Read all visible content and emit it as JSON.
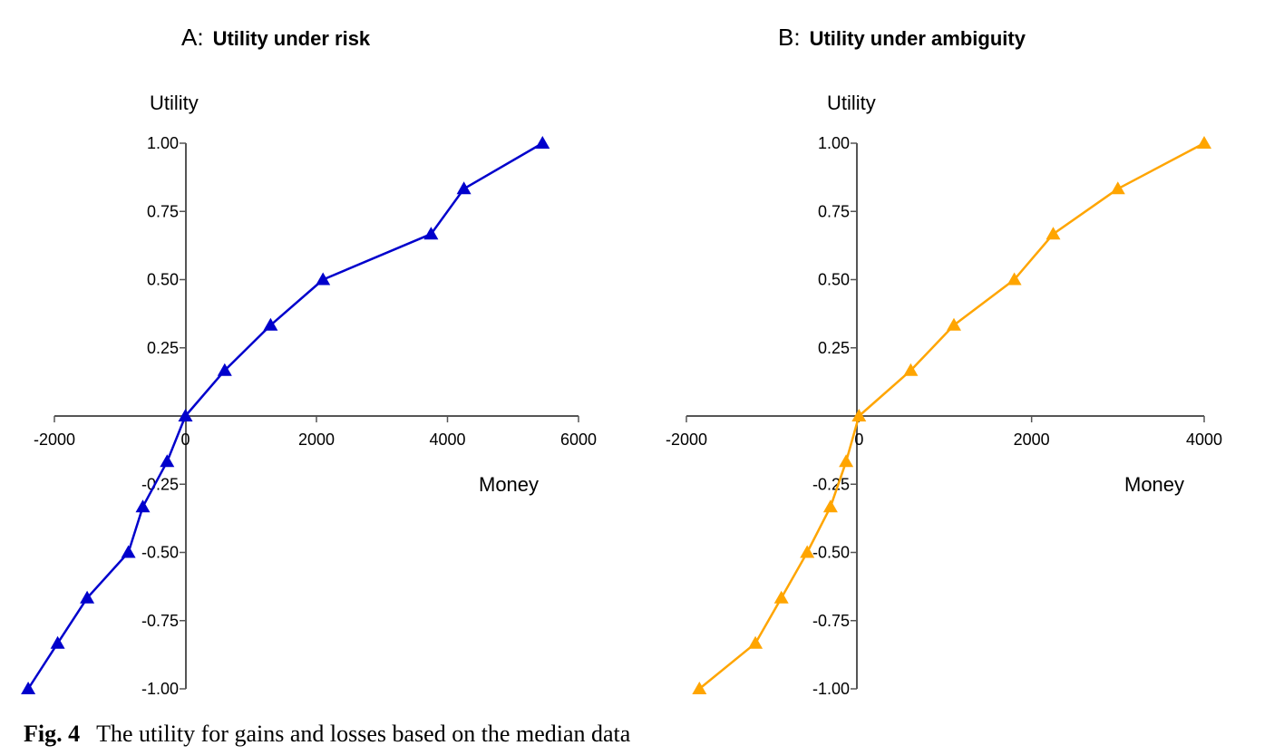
{
  "caption": {
    "label": "Fig. 4",
    "text": "The utility for gains and losses based on the median data"
  },
  "chart_data": [
    {
      "type": "line",
      "panel_letter": "A:",
      "title": "Utility under risk",
      "xlabel": "Money",
      "ylabel": "Utility",
      "xlim": [
        -2000,
        6000
      ],
      "ylim": [
        -1,
        1
      ],
      "xticks": [
        -2000,
        0,
        2000,
        4000,
        6000
      ],
      "xtick_labels": [
        "-2000",
        "0",
        "2000",
        "4000",
        "6000"
      ],
      "yticks": [
        1,
        0.75,
        0.5,
        0.25,
        -0.25,
        -0.5,
        -0.75,
        -1
      ],
      "ytick_labels": [
        "1.00",
        "0.75",
        "0.50",
        "0.25",
        "-0.25",
        "-0.50",
        "-0.75",
        "-1.00"
      ],
      "grid": false,
      "legend": "none",
      "color": "#0000cc",
      "marker": "triangle",
      "series": [
        {
          "x": [
            -2400,
            -1950,
            -1500,
            -870,
            -650,
            -280,
            0,
            600,
            1300,
            2100,
            3750,
            4250,
            5450
          ],
          "y": [
            -1.0,
            -0.833,
            -0.667,
            -0.5,
            -0.333,
            -0.167,
            0,
            0.167,
            0.333,
            0.5,
            0.667,
            0.833,
            1.0
          ]
        }
      ]
    },
    {
      "type": "line",
      "panel_letter": "B:",
      "title": "Utility under ambiguity",
      "xlabel": "Money",
      "ylabel": "Utility",
      "xlim": [
        -2000,
        4000
      ],
      "ylim": [
        -1,
        1
      ],
      "xticks": [
        -2000,
        0,
        2000,
        4000
      ],
      "xtick_labels": [
        "-2000",
        "0",
        "2000",
        "4000"
      ],
      "yticks": [
        1,
        0.75,
        0.5,
        0.25,
        -0.25,
        -0.5,
        -0.75,
        -1
      ],
      "ytick_labels": [
        "1.00",
        "0.75",
        "0.50",
        "0.25",
        "-0.25",
        "-0.50",
        "-0.75",
        "-1.00"
      ],
      "grid": false,
      "legend": "none",
      "color": "#ffa500",
      "marker": "triangle",
      "series": [
        {
          "x": [
            -1850,
            -1200,
            -900,
            -600,
            -330,
            -150,
            0,
            600,
            1100,
            1800,
            2250,
            3000,
            4000
          ],
          "y": [
            -1.0,
            -0.833,
            -0.667,
            -0.5,
            -0.333,
            -0.167,
            0,
            0.167,
            0.333,
            0.5,
            0.667,
            0.833,
            1.0
          ]
        }
      ]
    }
  ]
}
